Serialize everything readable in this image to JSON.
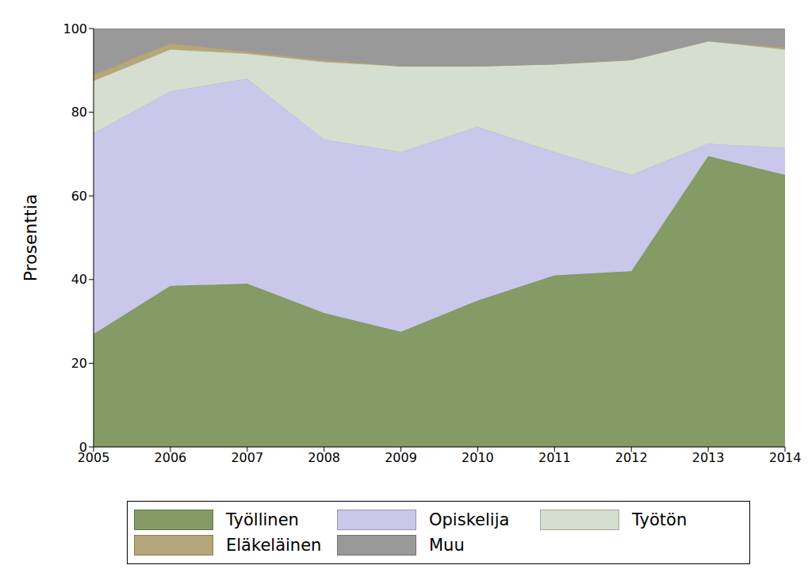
{
  "chart_data": {
    "type": "area",
    "stacked": true,
    "y_label": "Prosenttia",
    "x": [
      2005,
      2006,
      2007,
      2008,
      2009,
      2010,
      2011,
      2012,
      2013,
      2014
    ],
    "xlim": [
      2005,
      2014
    ],
    "xticks": [
      2005,
      2006,
      2007,
      2008,
      2009,
      2010,
      2011,
      2012,
      2013,
      2014
    ],
    "ylim": [
      0,
      100
    ],
    "yticks": [
      0,
      20,
      40,
      60,
      80,
      100
    ],
    "grid": true,
    "legend": "bottom",
    "series": [
      {
        "name": "Työllinen",
        "color": "#849b66",
        "values": [
          27,
          38.5,
          39,
          32,
          27.5,
          35,
          41,
          42,
          69.5,
          65
        ]
      },
      {
        "name": "Opiskelija",
        "color": "#c9c8ea",
        "values": [
          48,
          46.5,
          49,
          41.5,
          43,
          41.5,
          29.5,
          23,
          3,
          6.5
        ]
      },
      {
        "name": "Työtön",
        "color": "#d6dfcf",
        "values": [
          12.5,
          10,
          6,
          18.5,
          20.5,
          14.5,
          21,
          27.5,
          24.5,
          23.5
        ]
      },
      {
        "name": "Eläkeläinen",
        "color": "#b5a679",
        "values": [
          1.5,
          1.5,
          0.5,
          0.5,
          0,
          0,
          0,
          0,
          0,
          0.5
        ]
      },
      {
        "name": "Muu",
        "color": "#999999",
        "values": [
          11,
          3.5,
          5.5,
          7.5,
          9,
          9,
          8.5,
          7.5,
          3,
          4.5
        ]
      }
    ]
  }
}
